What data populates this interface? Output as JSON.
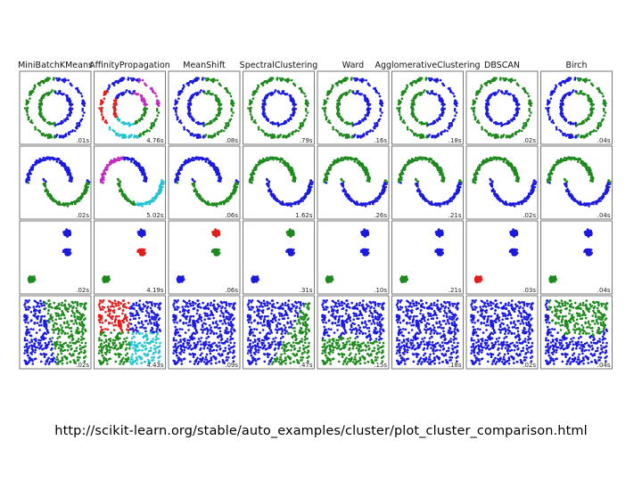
{
  "caption": "http://scikit-learn.org/stable/auto_examples/cluster/plot_cluster_comparison.html",
  "colors": {
    "blue": "#1a1ae0",
    "green": "#1e8a1e",
    "red": "#e01f1f",
    "magenta": "#c02cc0",
    "cyan": "#22c4d0"
  },
  "chart_data": {
    "type": "scatter",
    "layout": "grid",
    "rows": 4,
    "columns": [
      "MiniBatchKMeans",
      "AffinityPropagation",
      "MeanShift",
      "SpectralClustering",
      "Ward",
      "AgglomerativeClustering",
      "DBSCAN",
      "Birch"
    ],
    "datasets": [
      "noisy_circles",
      "noisy_moons",
      "blobs",
      "no_structure"
    ],
    "timings": [
      [
        ".01s",
        "4.76s",
        ".08s",
        ".79s",
        ".16s",
        ".18s",
        ".02s",
        ".04s"
      ],
      [
        ".02s",
        "5.02s",
        ".06s",
        "1.62s",
        ".26s",
        ".21s",
        ".02s",
        ".04s"
      ],
      [
        ".02s",
        "4.19s",
        ".06s",
        ".31s",
        ".10s",
        ".21s",
        ".03s",
        ".04s"
      ],
      [
        ".02s",
        "4.43s",
        ".09s",
        ".47s",
        ".15s",
        ".18s",
        ".02s",
        ".04s"
      ]
    ],
    "cluster_colors": [
      [
        [
          "green",
          "blue"
        ],
        [
          "green",
          "cyan",
          "red",
          "blue",
          "magenta"
        ],
        [
          "blue",
          "green"
        ],
        [
          "green",
          "blue"
        ],
        [
          "green",
          "blue"
        ],
        [
          "green",
          "blue"
        ],
        [
          "green",
          "blue"
        ],
        [
          "blue",
          "green"
        ]
      ],
      [
        [
          "blue",
          "green"
        ],
        [
          "magenta",
          "blue",
          "green",
          "cyan"
        ],
        [
          "blue",
          "green"
        ],
        [
          "green",
          "blue"
        ],
        [
          "green",
          "blue"
        ],
        [
          "green",
          "blue"
        ],
        [
          "green",
          "blue"
        ],
        [
          "green",
          "blue"
        ]
      ],
      [
        [
          "blue",
          "blue",
          "green"
        ],
        [
          "blue",
          "red",
          "green"
        ],
        [
          "red",
          "green",
          "blue"
        ],
        [
          "green",
          "blue",
          "blue"
        ],
        [
          "blue",
          "blue",
          "green"
        ],
        [
          "blue",
          "blue",
          "green"
        ],
        [
          "blue",
          "blue",
          "red"
        ],
        [
          "blue",
          "blue",
          "green"
        ]
      ],
      [
        [
          "blue",
          "green"
        ],
        [
          "red",
          "blue",
          "green",
          "cyan"
        ],
        [
          "blue"
        ],
        [
          "blue",
          "green"
        ],
        [
          "blue",
          "green"
        ],
        [
          "blue"
        ],
        [
          "blue"
        ],
        [
          "green",
          "blue"
        ]
      ]
    ]
  }
}
